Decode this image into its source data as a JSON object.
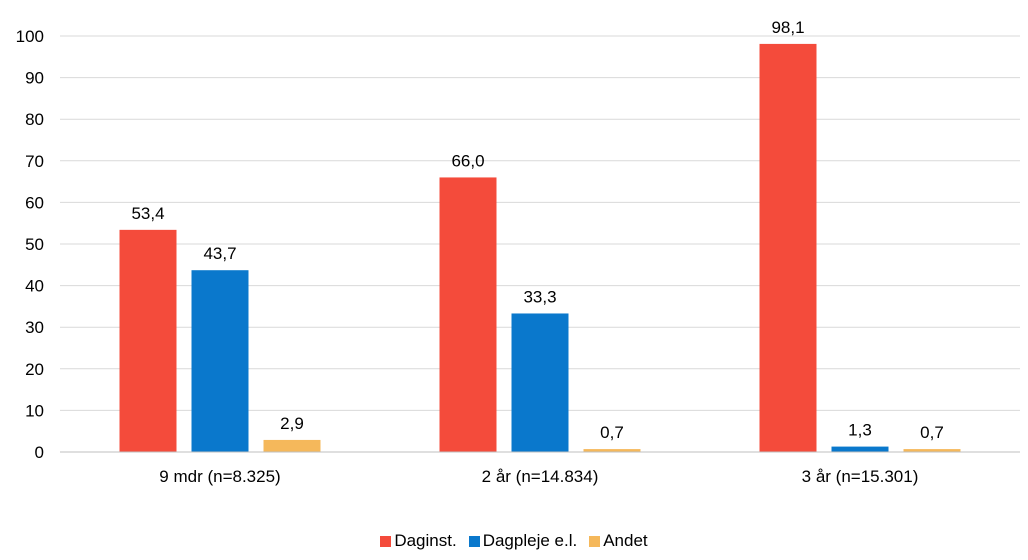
{
  "chart_data": {
    "type": "bar",
    "categories": [
      "9 mdr (n=8.325)",
      "2 år (n=14.834)",
      "3 år (n=15.301)"
    ],
    "series": [
      {
        "name": "Daginst.",
        "color": "#f44b3b",
        "values": [
          53.4,
          66.0,
          98.1
        ],
        "labels": [
          "53,4",
          "66,0",
          "98,1"
        ]
      },
      {
        "name": "Dagpleje e.l.",
        "color": "#0a78cc",
        "values": [
          43.7,
          33.3,
          1.3
        ],
        "labels": [
          "43,7",
          "33,3",
          "1,3"
        ]
      },
      {
        "name": "Andet",
        "color": "#f5b85b",
        "values": [
          2.9,
          0.7,
          0.7
        ],
        "labels": [
          "2,9",
          "0,7",
          "0,7"
        ]
      }
    ],
    "yticks": [
      "0",
      "10",
      "20",
      "30",
      "40",
      "50",
      "60",
      "70",
      "80",
      "90",
      "100"
    ],
    "ylim": [
      0,
      100
    ],
    "grid": true,
    "legend_position": "bottom"
  }
}
